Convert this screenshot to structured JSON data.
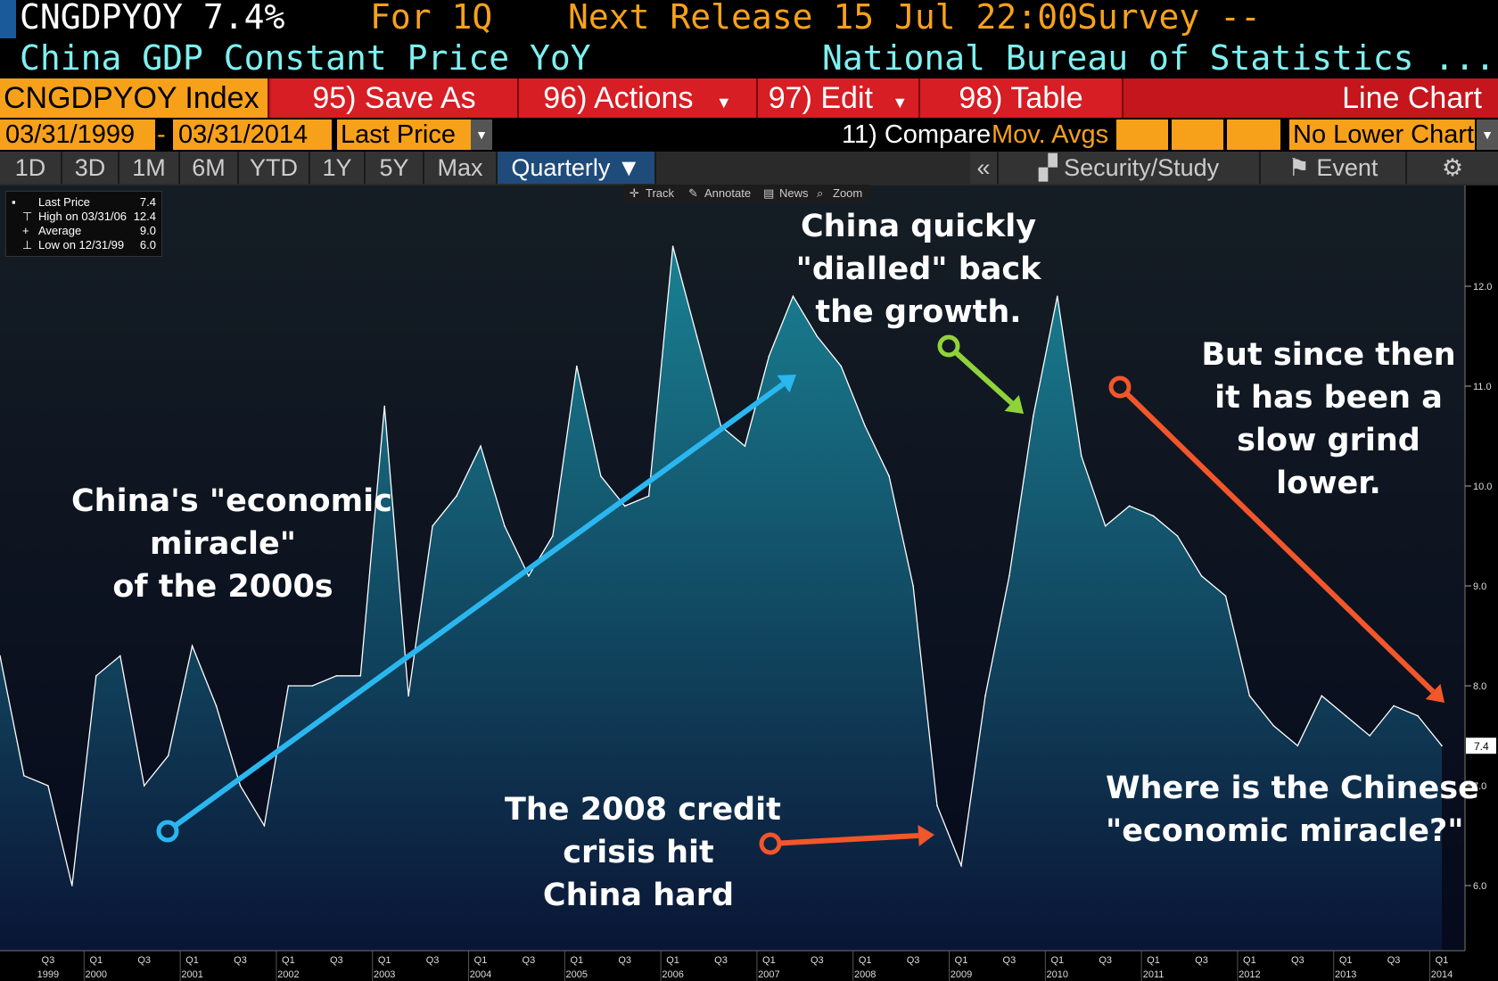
{
  "header": {
    "ticker": "CNGDPYOY 7.4%",
    "for": "For 1Q",
    "next_release": "Next Release 15 Jul 22:00",
    "survey": "Survey --",
    "description": "China GDP Constant Price YoY",
    "source": "National Bureau of Statistics ..."
  },
  "menu": {
    "index": "CNGDPYOY Index",
    "save_as": "95) Save As",
    "actions": "96) Actions",
    "edit": "97) Edit",
    "table": "98) Table",
    "chart_type": "Line Chart"
  },
  "daterow": {
    "start": "03/31/1999",
    "end": "03/31/2014",
    "field": "Last Price",
    "compare": "11) Compare",
    "mov_avgs": "Mov. Avgs",
    "lower": "No Lower Chart"
  },
  "periods": [
    "1D",
    "3D",
    "1M",
    "6M",
    "YTD",
    "1Y",
    "5Y",
    "Max"
  ],
  "period_selected": "Quarterly ▼",
  "right_tools": {
    "collapse": "«",
    "security": "Security/Study",
    "event": "Event",
    "settings": "⚙"
  },
  "toolbar": {
    "track": "Track",
    "annotate": "Annotate",
    "news": "News",
    "zoom": "Zoom"
  },
  "legend": {
    "last_label": "Last Price",
    "last_val": "7.4",
    "high_label": "High on 03/31/06",
    "high_val": "12.4",
    "avg_label": "Average",
    "avg_val": "9.0",
    "low_label": "Low on 12/31/99",
    "low_val": "6.0"
  },
  "annotations": {
    "miracle": [
      "China's \"economic",
      "miracle\"",
      "of the 2000s"
    ],
    "dialled": [
      "China quickly",
      "\"dialled\" back",
      "the growth."
    ],
    "grind": [
      "But since then",
      "it has been a",
      "slow grind",
      "lower."
    ],
    "crisis": [
      "The 2008 credit",
      "crisis hit",
      "China hard"
    ],
    "where": [
      "Where is the Chinese",
      "\"economic miracle?\""
    ]
  },
  "colors": {
    "area_top": "#1a8193",
    "area_bottom": "#0a1535",
    "line": "#ffffff",
    "arrow_blue": "#2ab7f0",
    "arrow_green": "#8fd33a",
    "arrow_orange": "#f2562a",
    "orange": "#f7a11b"
  },
  "chart_data": {
    "type": "area",
    "title": "",
    "xlabel": "",
    "ylabel": "",
    "ylim": [
      5.4,
      13.5
    ],
    "y_ticks": [
      "6.0",
      "7.0",
      "8.0",
      "9.0",
      "10.0",
      "11.0",
      "12.0"
    ],
    "last_value_label": "7.4",
    "x_tick_quarters": [
      "Q3",
      "Q1",
      "Q3",
      "Q1",
      "Q3",
      "Q1",
      "Q3",
      "Q1",
      "Q3",
      "Q1",
      "Q3",
      "Q1",
      "Q3",
      "Q1",
      "Q3",
      "Q1",
      "Q3",
      "Q1",
      "Q3",
      "Q1",
      "Q3",
      "Q1",
      "Q3",
      "Q1",
      "Q3",
      "Q1",
      "Q3",
      "Q1",
      "Q3",
      "Q1"
    ],
    "x_tick_years": [
      "1999",
      "2000",
      "2001",
      "2002",
      "2003",
      "2004",
      "2005",
      "2006",
      "2007",
      "2008",
      "2009",
      "2010",
      "2011",
      "2012",
      "2013",
      "2014"
    ],
    "x": [
      "1999Q1",
      "1999Q2",
      "1999Q3",
      "1999Q4",
      "2000Q1",
      "2000Q2",
      "2000Q3",
      "2000Q4",
      "2001Q1",
      "2001Q2",
      "2001Q3",
      "2001Q4",
      "2002Q1",
      "2002Q2",
      "2002Q3",
      "2002Q4",
      "2003Q1",
      "2003Q2",
      "2003Q3",
      "2003Q4",
      "2004Q1",
      "2004Q2",
      "2004Q3",
      "2004Q4",
      "2005Q1",
      "2005Q2",
      "2005Q3",
      "2005Q4",
      "2006Q1",
      "2006Q2",
      "2006Q3",
      "2006Q4",
      "2007Q1",
      "2007Q2",
      "2007Q3",
      "2007Q4",
      "2008Q1",
      "2008Q2",
      "2008Q3",
      "2008Q4",
      "2009Q1",
      "2009Q2",
      "2009Q3",
      "2009Q4",
      "2010Q1",
      "2010Q2",
      "2010Q3",
      "2010Q4",
      "2011Q1",
      "2011Q2",
      "2011Q3",
      "2011Q4",
      "2012Q1",
      "2012Q2",
      "2012Q3",
      "2012Q4",
      "2013Q1",
      "2013Q2",
      "2013Q3",
      "2013Q4",
      "2014Q1"
    ],
    "series": [
      {
        "values": [
          8.3,
          7.1,
          7.0,
          6.0,
          8.1,
          8.3,
          7.0,
          7.3,
          8.4,
          7.8,
          7.0,
          6.6,
          8.0,
          8.0,
          8.1,
          8.1,
          10.8,
          7.9,
          9.6,
          9.9,
          10.4,
          9.6,
          9.1,
          9.5,
          11.2,
          10.1,
          9.8,
          9.9,
          12.4,
          11.5,
          10.6,
          10.4,
          11.3,
          11.9,
          11.5,
          11.2,
          10.6,
          10.1,
          9.0,
          6.8,
          6.2,
          7.9,
          9.1,
          10.7,
          11.9,
          10.3,
          9.6,
          9.8,
          9.7,
          9.5,
          9.1,
          8.9,
          7.9,
          7.6,
          7.4,
          7.9,
          7.7,
          7.5,
          7.8,
          7.7,
          7.4
        ]
      }
    ]
  }
}
